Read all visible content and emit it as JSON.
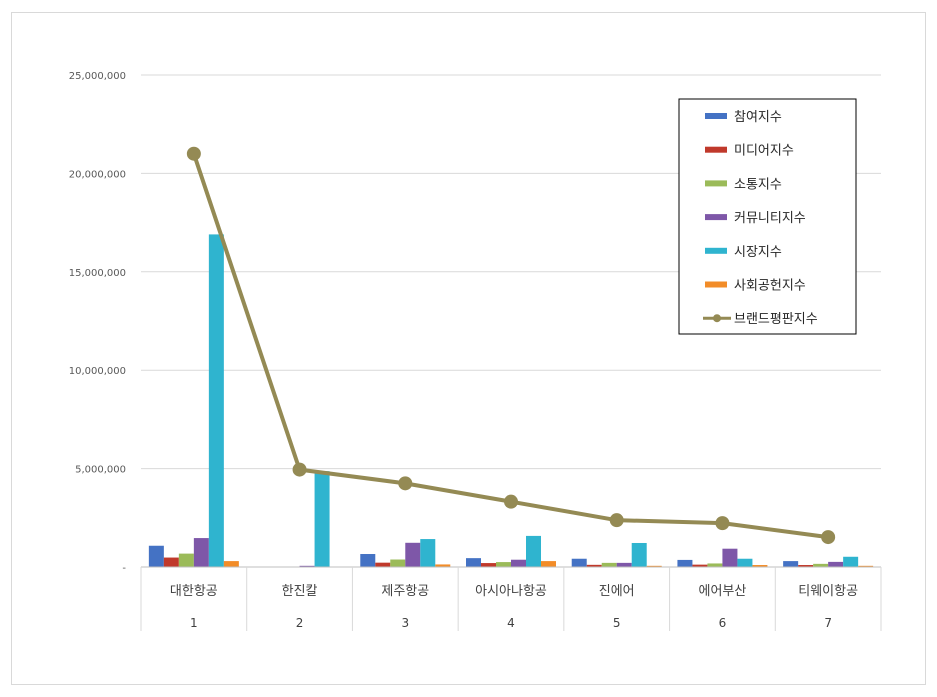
{
  "chart_data": {
    "type": "bar",
    "title": "",
    "xlabel": "",
    "ylabel": "",
    "ylim": [
      0,
      25000000
    ],
    "yticks": [
      0,
      5000000,
      10000000,
      15000000,
      20000000,
      25000000
    ],
    "ytick_labels": [
      "-",
      "5,000,000",
      "10,000,000",
      "15,000,000",
      "20,000,000",
      "25,000,000"
    ],
    "grid": true,
    "legend_position": "top-right",
    "categories": [
      "대한항공",
      "한진칼",
      "제주항공",
      "아시아나항공",
      "진에어",
      "에어부산",
      "티웨이항공"
    ],
    "category_numbers": [
      "1",
      "2",
      "3",
      "4",
      "5",
      "6",
      "7"
    ],
    "series": [
      {
        "name": "참여지수",
        "type": "bar",
        "color": "#4472c4",
        "values": [
          1080000,
          0,
          660000,
          450000,
          420000,
          360000,
          300000
        ]
      },
      {
        "name": "미디어지수",
        "type": "bar",
        "color": "#c0392b",
        "values": [
          480000,
          0,
          220000,
          200000,
          110000,
          120000,
          100000
        ]
      },
      {
        "name": "소통지수",
        "type": "bar",
        "color": "#9bbb59",
        "values": [
          680000,
          0,
          380000,
          250000,
          210000,
          180000,
          160000
        ]
      },
      {
        "name": "커뮤니티지수",
        "type": "bar",
        "color": "#7e57a8",
        "values": [
          1470000,
          60000,
          1230000,
          370000,
          210000,
          930000,
          260000
        ]
      },
      {
        "name": "시장지수",
        "type": "bar",
        "color": "#2fb4cf",
        "values": [
          16900000,
          4870000,
          1420000,
          1580000,
          1220000,
          420000,
          520000
        ]
      },
      {
        "name": "사회공헌지수",
        "type": "bar",
        "color": "#f28c28",
        "values": [
          300000,
          0,
          130000,
          300000,
          60000,
          100000,
          60000
        ]
      },
      {
        "name": "브랜드평판지수",
        "type": "line",
        "color": "#948a54",
        "values": [
          21000000,
          4950000,
          4250000,
          3320000,
          2380000,
          2230000,
          1520000
        ]
      }
    ]
  }
}
